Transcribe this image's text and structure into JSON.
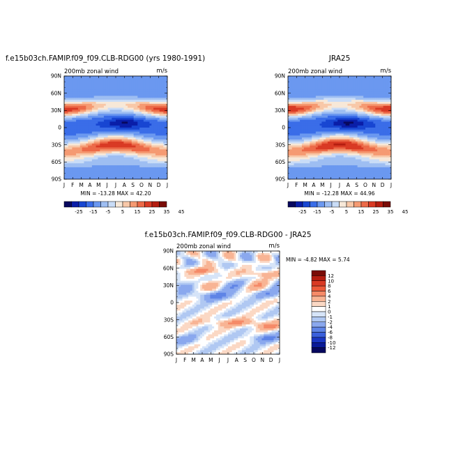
{
  "page": {
    "background": "#ffffff"
  },
  "colorbar_levels": {
    "main_labels": [
      "-25",
      "-15",
      "-5",
      "5",
      "15",
      "25",
      "35",
      "45"
    ],
    "main_colors": [
      "#08085e",
      "#0a1ea8",
      "#1846d2",
      "#3a6de8",
      "#6b98f0",
      "#9ebef2",
      "#c9dcf7",
      "#f7e8d8",
      "#f8c8a8",
      "#f59a72",
      "#ec6a48",
      "#d93a24",
      "#b51d10",
      "#7a0c06"
    ],
    "diff_labels": [
      "12",
      "10",
      "8",
      "6",
      "4",
      "2",
      "1",
      "0",
      "-1",
      "-2",
      "-4",
      "-6",
      "-8",
      "-10",
      "-12"
    ],
    "diff_colors": [
      "#7a0c06",
      "#b51d10",
      "#d93a24",
      "#ec5a3a",
      "#f58a68",
      "#f8b494",
      "#fbd8c4",
      "#ffffff",
      "#d6e4f8",
      "#b0c8f2",
      "#8aa8ee",
      "#5f84e6",
      "#3a60dc",
      "#1a36c2",
      "#0a1a98",
      "#06085e"
    ]
  },
  "chart_data": [
    {
      "type": "heatmap",
      "title": "f.e15b03ch.FAMIP.f09_f09.CLB-RDG00 (yrs 1980-1991)",
      "subtitle_left": "200mb zonal wind",
      "subtitle_right": "m/s",
      "x_tick_labels": [
        "J",
        "F",
        "M",
        "A",
        "M",
        "J",
        "J",
        "A",
        "S",
        "O",
        "N",
        "D",
        "J"
      ],
      "y_tick_labels": [
        "90N",
        "60N",
        "30N",
        "0",
        "30S",
        "60S",
        "90S"
      ],
      "stats": "MIN = -13.28 MAX = 42.20",
      "min": -13.28,
      "max": 42.2,
      "colorbar": "horizontal",
      "features": [
        {
          "lat": 30,
          "month": 1,
          "value": 38
        },
        {
          "lat": 30,
          "month": 7,
          "value": 12
        },
        {
          "lat": 30,
          "month": 12,
          "value": 37
        },
        {
          "lat": 0,
          "month": 7,
          "value": -12
        },
        {
          "lat": -30,
          "month": 7,
          "value": 40
        },
        {
          "lat": -45,
          "month": 1,
          "value": 30
        }
      ]
    },
    {
      "type": "heatmap",
      "title": "JRA25",
      "subtitle_left": "200mb zonal wind",
      "subtitle_right": "m/s",
      "x_tick_labels": [
        "J",
        "F",
        "M",
        "A",
        "M",
        "J",
        "J",
        "A",
        "S",
        "O",
        "N",
        "D",
        "J"
      ],
      "y_tick_labels": [
        "90N",
        "60N",
        "30N",
        "0",
        "30S",
        "60S",
        "90S"
      ],
      "stats": "MIN = -12.28 MAX = 44.96",
      "min": -12.28,
      "max": 44.96,
      "colorbar": "horizontal"
    },
    {
      "type": "heatmap",
      "title": "f.e15b03ch.FAMIP.f09_f09.CLB-RDG00 - JRA25",
      "subtitle_left": "200mb zonal wind",
      "subtitle_right": "m/s",
      "x_tick_labels": [
        "J",
        "F",
        "M",
        "A",
        "M",
        "J",
        "J",
        "A",
        "S",
        "O",
        "N",
        "D",
        "J"
      ],
      "y_tick_labels": [
        "90N",
        "60N",
        "30N",
        "0",
        "30S",
        "60S",
        "90S"
      ],
      "stats": "MIN = -4.82 MAX = 5.74",
      "min": -4.82,
      "max": 5.74,
      "colorbar": "vertical"
    }
  ]
}
